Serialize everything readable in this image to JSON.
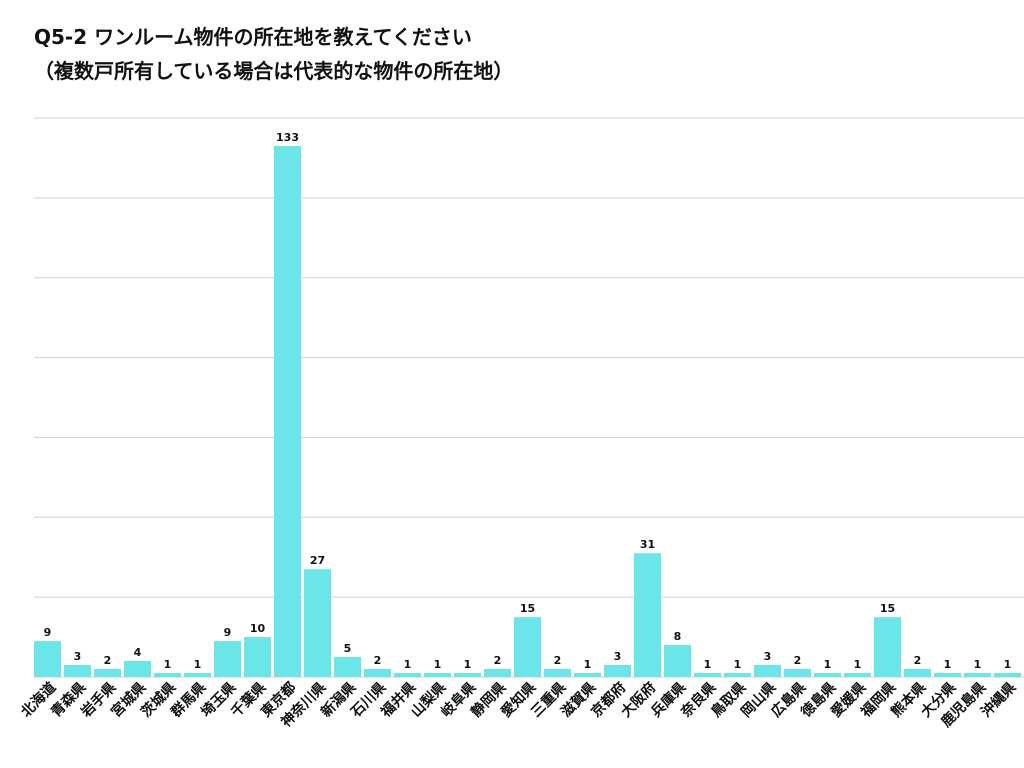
{
  "chart_data": {
    "type": "bar",
    "title_line1": "Q5-2 ワンルーム物件の所在地を教えてください",
    "title_line2": "（複数戸所有している場合は代表的な物件の所在地）",
    "categories": [
      "北海道",
      "青森県",
      "岩手県",
      "宮城県",
      "茨城県",
      "群馬県",
      "埼玉県",
      "千葉県",
      "東京都",
      "神奈川県",
      "新潟県",
      "石川県",
      "福井県",
      "山梨県",
      "岐阜県",
      "静岡県",
      "愛知県",
      "三重県",
      "滋賀県",
      "京都府",
      "大阪府",
      "兵庫県",
      "奈良県",
      "鳥取県",
      "岡山県",
      "広島県",
      "徳島県",
      "愛媛県",
      "福岡県",
      "熊本県",
      "大分県",
      "鹿児島県",
      "沖縄県"
    ],
    "values": [
      9,
      3,
      2,
      4,
      1,
      1,
      9,
      10,
      133,
      27,
      5,
      2,
      1,
      1,
      1,
      2,
      15,
      2,
      1,
      3,
      31,
      8,
      1,
      1,
      3,
      2,
      1,
      1,
      15,
      2,
      1,
      1,
      1
    ],
    "xlabel": "",
    "ylabel": "",
    "ylim": [
      0,
      140
    ],
    "ytick_step": 20,
    "grid": true,
    "legend": "none",
    "bar_color": "#6ce5e8"
  }
}
